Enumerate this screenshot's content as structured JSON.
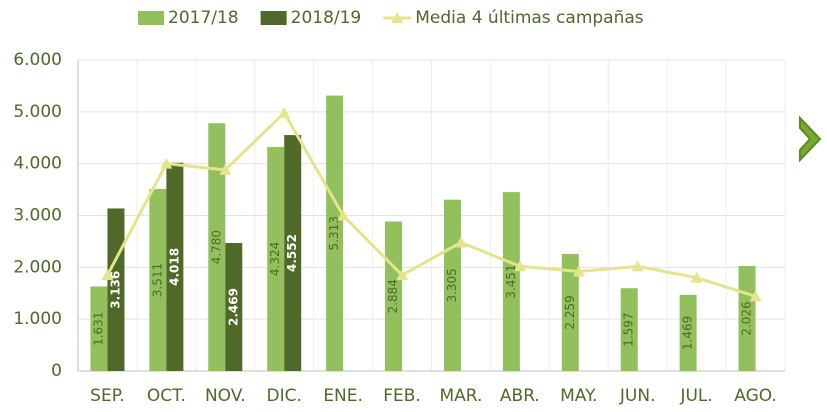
{
  "chart_data": {
    "type": "bar",
    "categories": [
      "SEP.",
      "OCT.",
      "NOV.",
      "DIC.",
      "ENE.",
      "FEB.",
      "MAR.",
      "ABR.",
      "MAY.",
      "JUN.",
      "JUL.",
      "AGO."
    ],
    "series": [
      {
        "name": "2017/18",
        "type": "bar",
        "color": "#92c05c",
        "values": [
          1631,
          3511,
          4780,
          4324,
          5313,
          2884,
          3305,
          3451,
          2259,
          1597,
          1469,
          2026
        ],
        "value_labels": [
          "1.631",
          "3.511",
          "4.780",
          "4.324",
          "5.313",
          "2.884",
          "3.305",
          "3.451",
          "2.259",
          "1.597",
          "1.469",
          "2.026"
        ]
      },
      {
        "name": "2018/19",
        "type": "bar",
        "color": "#4f6a28",
        "values": [
          3136,
          4018,
          2469,
          4552,
          null,
          null,
          null,
          null,
          null,
          null,
          null,
          null
        ],
        "value_labels": [
          "3.136",
          "4.018",
          "2.469",
          "4.552",
          null,
          null,
          null,
          null,
          null,
          null,
          null,
          null
        ]
      },
      {
        "name": "Media 4 últimas campañas",
        "type": "line",
        "color": "#e4e48c",
        "values": [
          1850,
          4000,
          3880,
          4980,
          3000,
          1850,
          2480,
          2020,
          1920,
          2020,
          1800,
          1440
        ]
      }
    ],
    "ylim": [
      0,
      6000
    ],
    "yticks": [
      0,
      {
        "value": 1000,
        "label": "1.000"
      },
      {
        "value": 2000,
        "label": "2.000"
      },
      {
        "value": 3000,
        "label": "3.000"
      },
      {
        "value": 4000,
        "label": "4.000"
      },
      {
        "value": 5000,
        "label": "5.000"
      },
      {
        "value": 6000,
        "label": "6.000"
      }
    ],
    "grid": true,
    "legend": "top"
  }
}
